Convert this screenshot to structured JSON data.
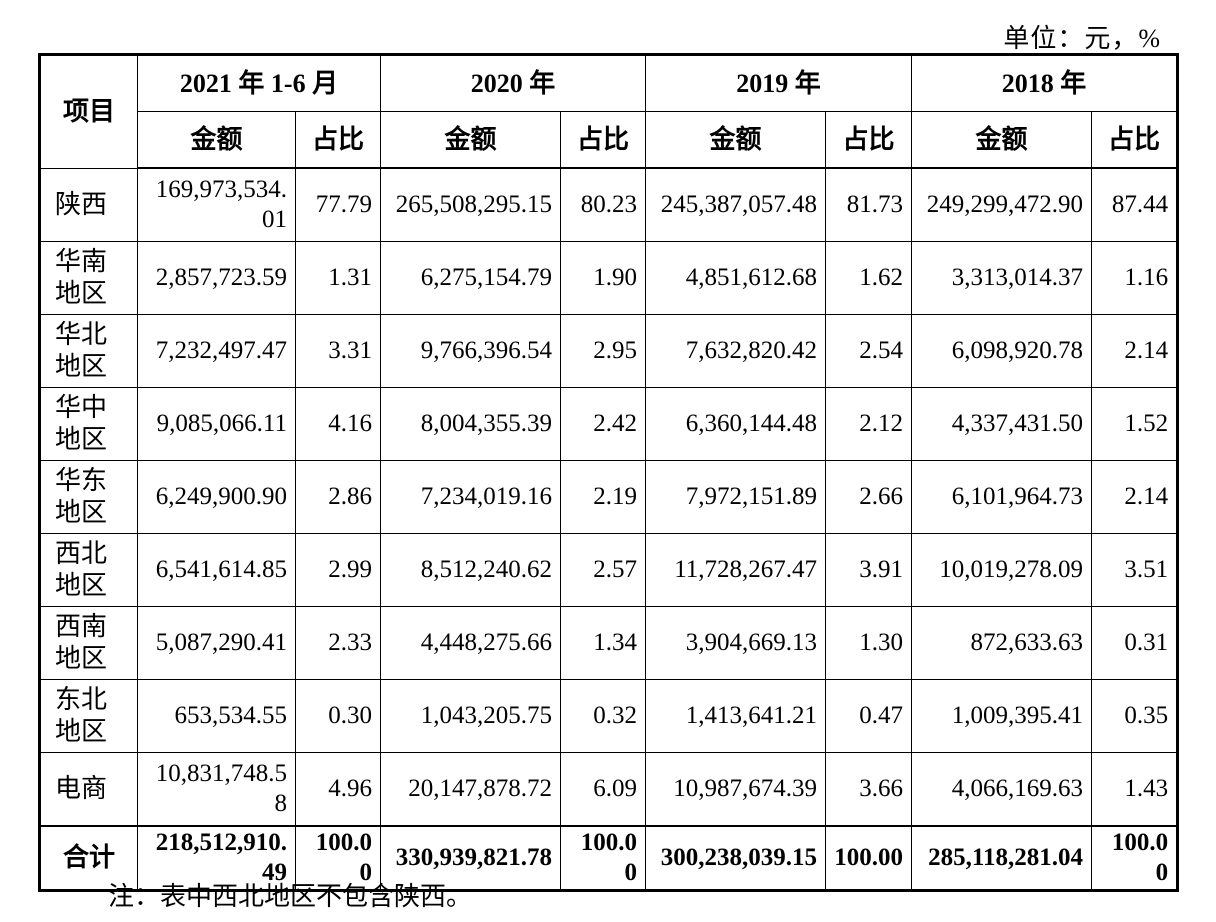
{
  "unit_label": "单位：元，%",
  "header": {
    "item": "项目",
    "periods": [
      "2021 年 1-6 月",
      "2020 年",
      "2019 年",
      "2018 年"
    ],
    "amount": "金额",
    "ratio": "占比"
  },
  "rows": [
    {
      "name": "陕西",
      "cells": [
        "169,973,534.01",
        "77.79",
        "265,508,295.15",
        "80.23",
        "245,387,057.48",
        "81.73",
        "249,299,472.90",
        "87.44"
      ]
    },
    {
      "name": "华南地区",
      "cells": [
        "2,857,723.59",
        "1.31",
        "6,275,154.79",
        "1.90",
        "4,851,612.68",
        "1.62",
        "3,313,014.37",
        "1.16"
      ]
    },
    {
      "name": "华北地区",
      "cells": [
        "7,232,497.47",
        "3.31",
        "9,766,396.54",
        "2.95",
        "7,632,820.42",
        "2.54",
        "6,098,920.78",
        "2.14"
      ]
    },
    {
      "name": "华中地区",
      "cells": [
        "9,085,066.11",
        "4.16",
        "8,004,355.39",
        "2.42",
        "6,360,144.48",
        "2.12",
        "4,337,431.50",
        "1.52"
      ]
    },
    {
      "name": "华东地区",
      "cells": [
        "6,249,900.90",
        "2.86",
        "7,234,019.16",
        "2.19",
        "7,972,151.89",
        "2.66",
        "6,101,964.73",
        "2.14"
      ]
    },
    {
      "name": "西北地区",
      "cells": [
        "6,541,614.85",
        "2.99",
        "8,512,240.62",
        "2.57",
        "11,728,267.47",
        "3.91",
        "10,019,278.09",
        "3.51"
      ]
    },
    {
      "name": "西南地区",
      "cells": [
        "5,087,290.41",
        "2.33",
        "4,448,275.66",
        "1.34",
        "3,904,669.13",
        "1.30",
        "872,633.63",
        "0.31"
      ]
    },
    {
      "name": "东北地区",
      "cells": [
        "653,534.55",
        "0.30",
        "1,043,205.75",
        "0.32",
        "1,413,641.21",
        "0.47",
        "1,009,395.41",
        "0.35"
      ]
    },
    {
      "name": "电商",
      "cells": [
        "10,831,748.58",
        "4.96",
        "20,147,878.72",
        "6.09",
        "10,987,674.39",
        "3.66",
        "4,066,169.63",
        "1.43"
      ]
    }
  ],
  "total": {
    "name": "合计",
    "cells": [
      "218,512,910.49",
      "100.00",
      "330,939,821.78",
      "100.00",
      "300,238,039.15",
      "100.00",
      "285,118,281.04",
      "100.00"
    ]
  },
  "note": "注：表中西北地区不包含陕西。"
}
